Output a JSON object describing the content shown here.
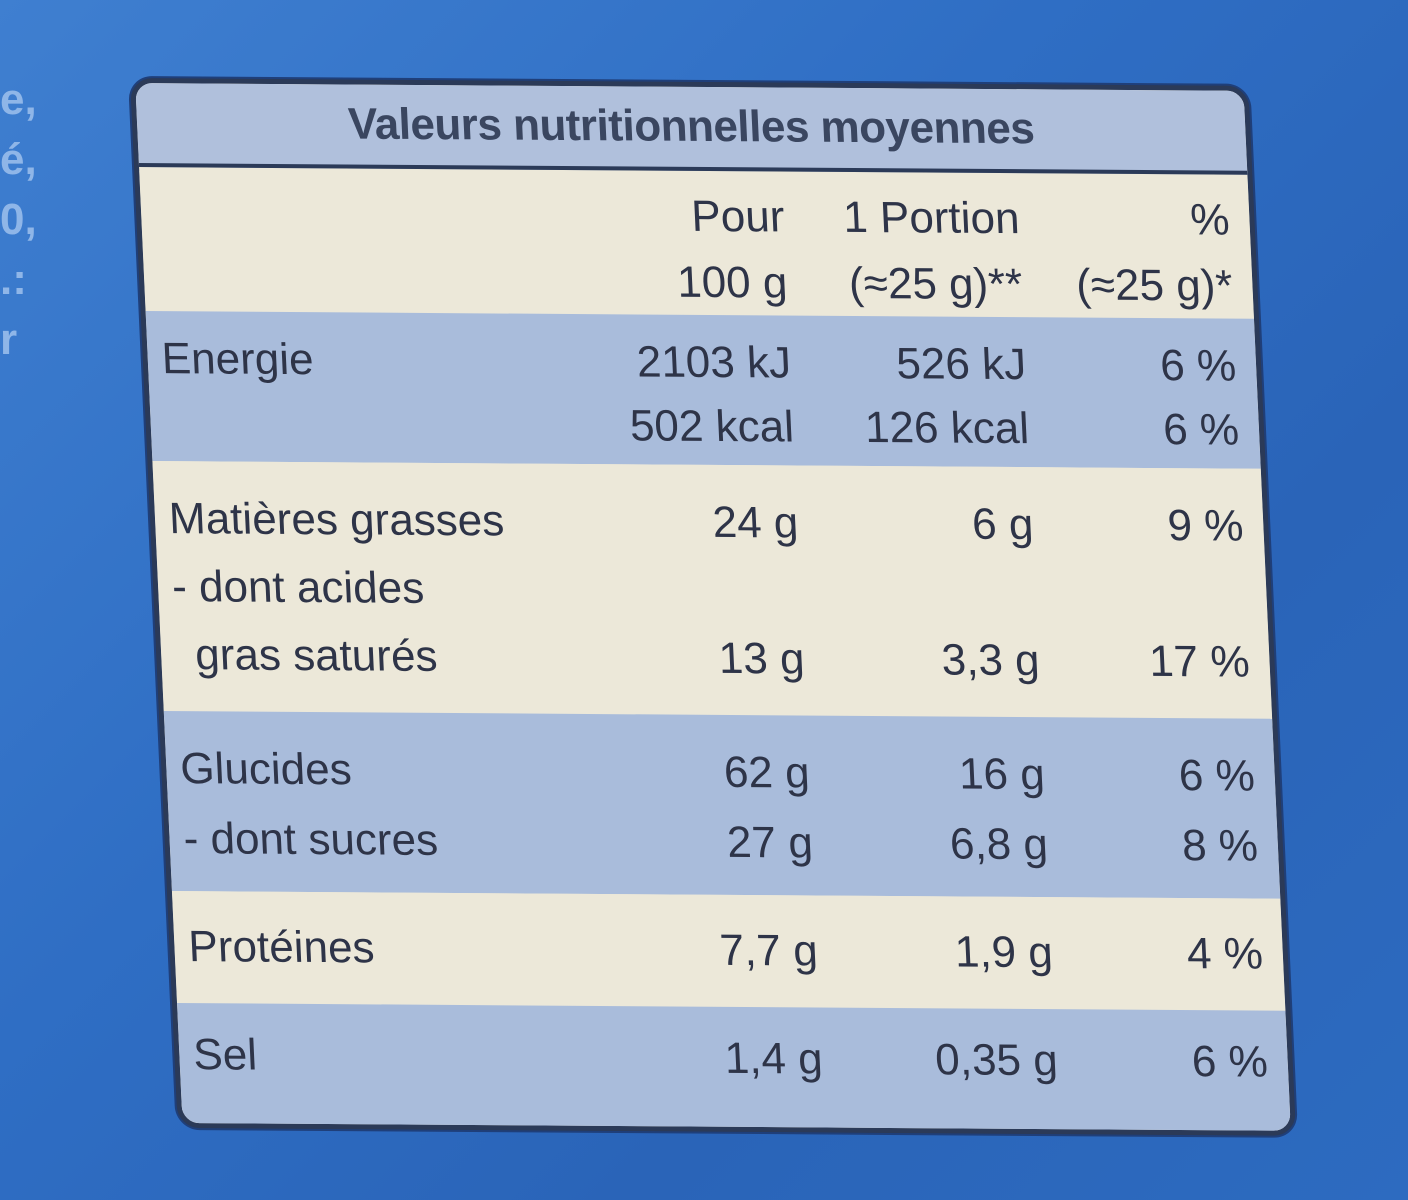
{
  "edge_fragments": [
    "e,",
    "é,",
    "0,",
    ".:",
    "r"
  ],
  "table": {
    "title": "Valeurs nutritionnelles moyennes",
    "header": {
      "col1": [
        "Pour",
        "100 g"
      ],
      "col2": [
        "1 Portion",
        "(≈25 g)**"
      ],
      "col3": [
        "%",
        "(≈25 g)*"
      ]
    },
    "rows": {
      "energie": {
        "label": "Energie",
        "c1": [
          "2103 kJ",
          "502 kcal"
        ],
        "c2": [
          "526 kJ",
          "126 kcal"
        ],
        "c3": [
          "6 %",
          "6 %"
        ]
      },
      "matieres": {
        "label": "Matières grasses",
        "c1": "24 g",
        "c2": "6 g",
        "c3": "9 %"
      },
      "acides_l1": "- dont acides",
      "acides": {
        "label": "gras saturés",
        "c1": "13 g",
        "c2": "3,3 g",
        "c3": "17 %"
      },
      "glucides": {
        "label": "Glucides",
        "c1": "62 g",
        "c2": "16 g",
        "c3": "6 %"
      },
      "sucres": {
        "label": "- dont sucres",
        "c1": "27 g",
        "c2": "6,8 g",
        "c3": "8 %"
      },
      "proteines": {
        "label": "Protéines",
        "c1": "7,7 g",
        "c2": "1,9 g",
        "c3": "4 %"
      },
      "sel": {
        "label": "Sel",
        "c1": "1,4 g",
        "c2": "0,35 g",
        "c3": "6 %"
      }
    }
  }
}
